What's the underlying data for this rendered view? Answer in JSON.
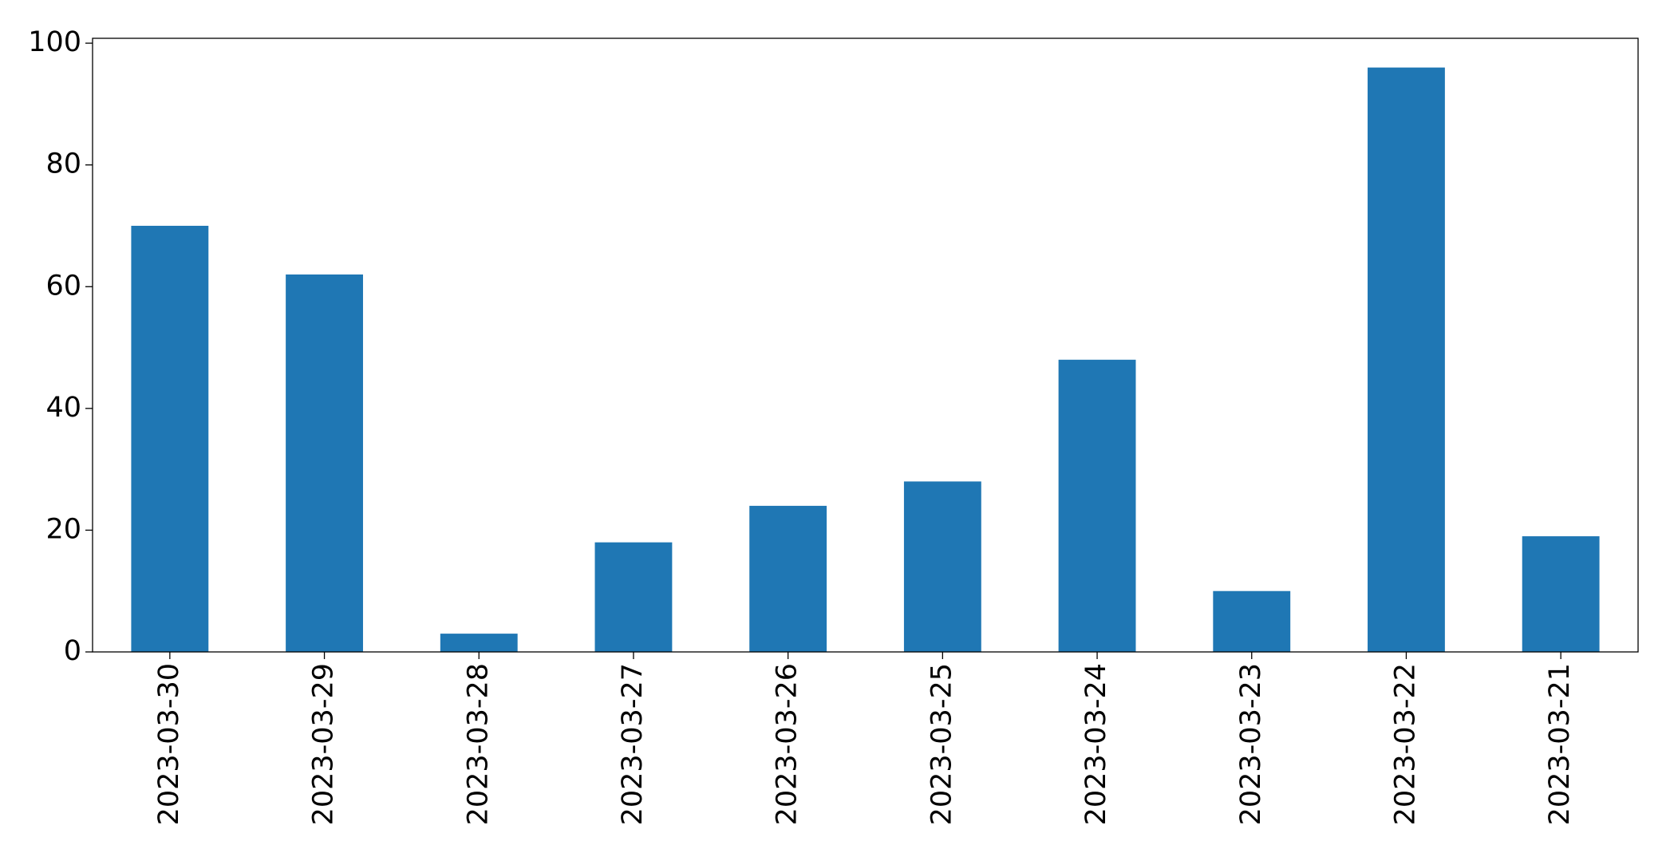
{
  "chart_data": {
    "type": "bar",
    "categories": [
      "2023-03-30",
      "2023-03-29",
      "2023-03-28",
      "2023-03-27",
      "2023-03-26",
      "2023-03-25",
      "2023-03-24",
      "2023-03-23",
      "2023-03-22",
      "2023-03-21"
    ],
    "values": [
      70,
      62,
      3,
      18,
      24,
      28,
      48,
      10,
      96,
      19
    ],
    "color": "#1f77b4",
    "ylim": [
      0,
      100.8
    ],
    "yticks": [
      0,
      20,
      40,
      60,
      80,
      100
    ],
    "grid": false
  }
}
